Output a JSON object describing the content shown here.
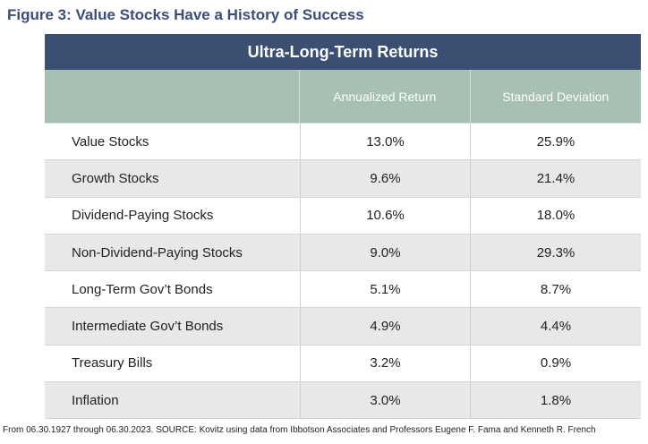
{
  "figure_title": "Figure 3: Value Stocks Have a History of Success",
  "chart_data": {
    "type": "table",
    "title": "Ultra-Long-Term Returns",
    "columns": [
      "",
      "Annualized Return",
      "Standard Deviation"
    ],
    "rows": [
      {
        "label": "Value Stocks",
        "annualized_return": "13.0%",
        "standard_deviation": "25.9%"
      },
      {
        "label": "Growth Stocks",
        "annualized_return": "9.6%",
        "standard_deviation": "21.4%"
      },
      {
        "label": "Dividend-Paying Stocks",
        "annualized_return": "10.6%",
        "standard_deviation": "18.0%"
      },
      {
        "label": "Non-Dividend-Paying Stocks",
        "annualized_return": "9.0%",
        "standard_deviation": "29.3%"
      },
      {
        "label": "Long-Term Gov’t Bonds",
        "annualized_return": "5.1%",
        "standard_deviation": "8.7%"
      },
      {
        "label": "Intermediate Gov’t Bonds",
        "annualized_return": "4.9%",
        "standard_deviation": "4.4%"
      },
      {
        "label": "Treasury Bills",
        "annualized_return": "3.2%",
        "standard_deviation": "0.9%"
      },
      {
        "label": "Inflation",
        "annualized_return": "3.0%",
        "standard_deviation": "1.8%"
      }
    ]
  },
  "source_note": "From 06.30.1927 through 06.30.2023. SOURCE: Kovitz using data from Ibbotson Associates and Professors Eugene F. Fama and Kenneth R. French",
  "colors": {
    "title": "#3a4e78",
    "banner": "#3b4f72",
    "header": "#a7c0b1",
    "row_alt": "#e8e8e8"
  }
}
